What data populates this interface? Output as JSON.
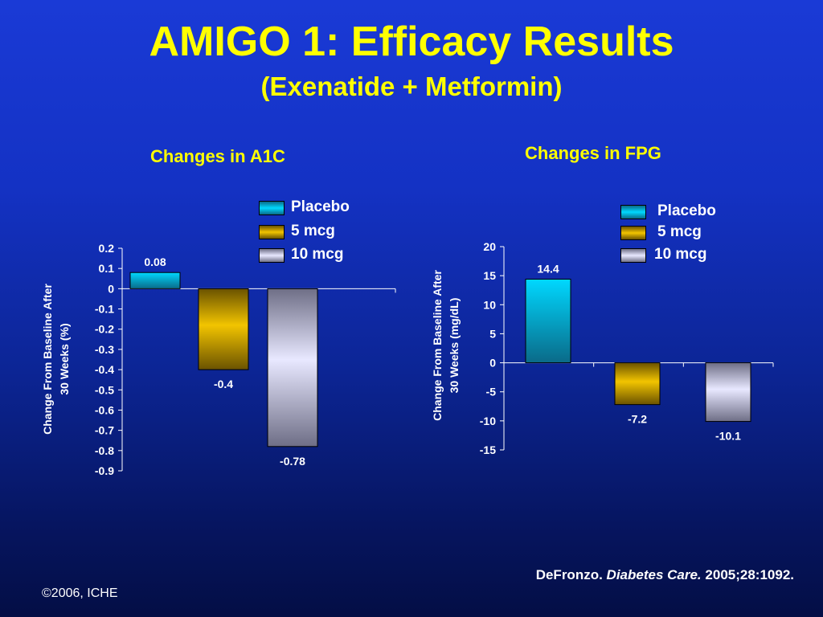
{
  "slide": {
    "title": "AMIGO 1: Efficacy Results",
    "subtitle": "(Exenatide + Metformin)",
    "reference_author": "DeFronzo.",
    "reference_journal": "Diabetes Care.",
    "reference_details": "2005;28:1092.",
    "copyright": "©2006, ICHE"
  },
  "colors": {
    "background": "#1432c4",
    "title": "#ffff00",
    "placebo": "#00bfe6",
    "mcg5": "#e6b400",
    "mcg10": "#c8c8f0"
  },
  "legend": [
    "Placebo",
    "5 mcg",
    "10 mcg"
  ],
  "chart_data": [
    {
      "type": "bar",
      "title": "Changes in A1C",
      "ylabel_line1": "Change From Baseline After",
      "ylabel_line2": "30 Weeks (%)",
      "categories": [
        "Placebo",
        "5 mcg",
        "10 mcg"
      ],
      "values": [
        0.08,
        -0.4,
        -0.78
      ],
      "data_labels": [
        "0.08",
        "-0.4",
        "-0.78"
      ],
      "ylim": [
        -0.9,
        0.2
      ],
      "ticks": [
        0.2,
        0.1,
        0,
        -0.1,
        -0.2,
        -0.3,
        -0.4,
        -0.5,
        -0.6,
        -0.7,
        -0.8,
        -0.9
      ],
      "tick_labels": [
        "0.2",
        "0.1",
        "0",
        "-0.1",
        "-0.2",
        "-0.3",
        "-0.4",
        "-0.5",
        "-0.6",
        "-0.7",
        "-0.8",
        "-0.9"
      ],
      "grid": false,
      "legend_position": "top-right"
    },
    {
      "type": "bar",
      "title": "Changes in FPG",
      "ylabel_line1": "Change From Baseline After",
      "ylabel_line2": "30 Weeks (mg/dL)",
      "categories": [
        "Placebo",
        "5 mcg",
        "10 mcg"
      ],
      "values": [
        14.4,
        -7.2,
        -10.1
      ],
      "data_labels": [
        "14.4",
        "-7.2",
        "-10.1"
      ],
      "ylim": [
        -15,
        20
      ],
      "ticks": [
        20,
        15,
        10,
        5,
        0,
        -5,
        -10,
        -15
      ],
      "tick_labels": [
        "20",
        "15",
        "10",
        "5",
        "0",
        "-5",
        "-10",
        "-15"
      ],
      "grid": false,
      "legend_position": "top-right"
    }
  ]
}
